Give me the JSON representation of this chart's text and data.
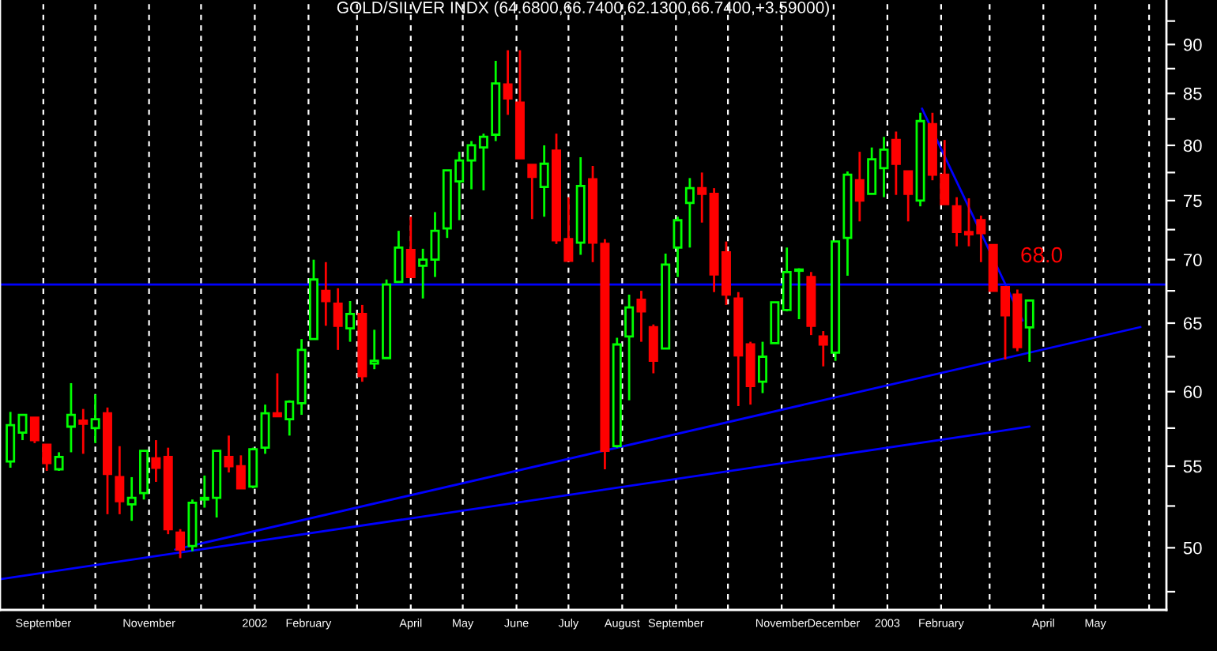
{
  "chart_data": {
    "type": "candlestick",
    "title": "GOLD/SILVER INDX (64.6800,66.7400,62.1300,66.7400,+3.59000)",
    "x": [
      "2001-08-13",
      "2001-08-20",
      "2001-08-27",
      "2001-09-03",
      "2001-09-10",
      "2001-09-17",
      "2001-09-24",
      "2001-10-01",
      "2001-10-08",
      "2001-10-15",
      "2001-10-22",
      "2001-10-29",
      "2001-11-05",
      "2001-11-12",
      "2001-11-19",
      "2001-11-26",
      "2001-12-03",
      "2001-12-10",
      "2001-12-17",
      "2001-12-24",
      "2001-12-31",
      "2002-01-07",
      "2002-01-14",
      "2002-01-21",
      "2002-01-28",
      "2002-02-04",
      "2002-02-11",
      "2002-02-18",
      "2002-02-25",
      "2002-03-04",
      "2002-03-11",
      "2002-03-18",
      "2002-03-25",
      "2002-04-01",
      "2002-04-08",
      "2002-04-15",
      "2002-04-22",
      "2002-04-29",
      "2002-05-06",
      "2002-05-13",
      "2002-05-20",
      "2002-05-27",
      "2002-06-03",
      "2002-06-10",
      "2002-06-17",
      "2002-06-24",
      "2002-07-01",
      "2002-07-08",
      "2002-07-15",
      "2002-07-22",
      "2002-07-29",
      "2002-08-05",
      "2002-08-12",
      "2002-08-19",
      "2002-08-26",
      "2002-09-02",
      "2002-09-09",
      "2002-09-16",
      "2002-09-23",
      "2002-09-30",
      "2002-10-07",
      "2002-10-14",
      "2002-10-21",
      "2002-10-28",
      "2002-11-04",
      "2002-11-11",
      "2002-11-18",
      "2002-11-25",
      "2002-12-02",
      "2002-12-09",
      "2002-12-16",
      "2002-12-23",
      "2002-12-30",
      "2003-01-06",
      "2003-01-13",
      "2003-01-20",
      "2003-01-27",
      "2003-02-03",
      "2003-02-10",
      "2003-02-17",
      "2003-02-24",
      "2003-03-03",
      "2003-03-10",
      "2003-03-17",
      "2003-03-24"
    ],
    "ohlc": [
      [
        55.3,
        58.6,
        54.9,
        57.7
      ],
      [
        57.2,
        58.4,
        56.7,
        58.4
      ],
      [
        58.2,
        58.2,
        56.5,
        56.7
      ],
      [
        56.4,
        56.4,
        54.7,
        55.2
      ],
      [
        54.8,
        55.9,
        54.7,
        55.6
      ],
      [
        57.6,
        60.6,
        55.9,
        58.4
      ],
      [
        58.0,
        58.8,
        55.8,
        57.8
      ],
      [
        57.5,
        59.8,
        56.5,
        58.1
      ],
      [
        58.5,
        58.9,
        52.0,
        54.5
      ],
      [
        54.3,
        56.3,
        52.0,
        52.8
      ],
      [
        52.6,
        54.3,
        51.6,
        53.0
      ],
      [
        53.3,
        56.0,
        52.9,
        56.0
      ],
      [
        55.5,
        56.7,
        54.0,
        54.9
      ],
      [
        55.6,
        56.2,
        50.8,
        51.1
      ],
      [
        50.9,
        51.1,
        49.4,
        49.9
      ],
      [
        50.1,
        52.9,
        49.8,
        52.7
      ],
      [
        52.9,
        54.4,
        52.4,
        53.0
      ],
      [
        53.0,
        56.0,
        51.8,
        56.0
      ],
      [
        55.6,
        57.0,
        54.6,
        55.0
      ],
      [
        55.0,
        55.7,
        53.6,
        53.6
      ],
      [
        53.7,
        56.2,
        53.6,
        56.1
      ],
      [
        56.2,
        59.1,
        55.8,
        58.5
      ],
      [
        58.5,
        61.3,
        58.3,
        58.3
      ],
      [
        58.1,
        59.4,
        57.0,
        59.3
      ],
      [
        59.2,
        63.8,
        58.4,
        63.0
      ],
      [
        63.8,
        70.0,
        63.8,
        68.4
      ],
      [
        67.5,
        69.8,
        64.8,
        66.7
      ],
      [
        66.5,
        67.7,
        63.0,
        64.8
      ],
      [
        64.6,
        66.7,
        63.6,
        65.7
      ],
      [
        65.7,
        66.4,
        60.7,
        61.1
      ],
      [
        62.0,
        64.5,
        61.6,
        62.2
      ],
      [
        62.4,
        68.4,
        62.4,
        68.0
      ],
      [
        68.2,
        72.4,
        68.2,
        71.0
      ],
      [
        70.8,
        73.6,
        68.6,
        68.6
      ],
      [
        69.5,
        70.9,
        66.9,
        70.0
      ],
      [
        70.0,
        74.0,
        68.6,
        72.4
      ],
      [
        72.6,
        77.7,
        71.8,
        77.7
      ],
      [
        76.7,
        79.4,
        73.3,
        78.6
      ],
      [
        78.6,
        80.4,
        76.0,
        80.0
      ],
      [
        79.8,
        81.1,
        75.9,
        80.8
      ],
      [
        81.0,
        88.3,
        80.4,
        86.0
      ],
      [
        85.9,
        89.4,
        82.9,
        84.5
      ],
      [
        84.1,
        89.4,
        78.8,
        78.8
      ],
      [
        78.2,
        78.2,
        73.4,
        77.1
      ],
      [
        76.2,
        80.0,
        73.6,
        78.3
      ],
      [
        79.5,
        81.1,
        71.3,
        71.6
      ],
      [
        71.7,
        75.3,
        69.9,
        69.9
      ],
      [
        71.4,
        78.9,
        70.4,
        76.3
      ],
      [
        76.9,
        78.1,
        69.8,
        71.4
      ],
      [
        71.3,
        71.7,
        54.8,
        56.0
      ],
      [
        56.3,
        63.9,
        56.2,
        63.4
      ],
      [
        64.0,
        67.2,
        59.4,
        66.2
      ],
      [
        66.8,
        67.5,
        63.6,
        65.9
      ],
      [
        64.7,
        64.9,
        61.3,
        62.2
      ],
      [
        63.1,
        70.5,
        63.1,
        69.6
      ],
      [
        71.0,
        73.6,
        68.6,
        73.3
      ],
      [
        74.8,
        77.0,
        71.0,
        76.1
      ],
      [
        76.1,
        77.5,
        73.1,
        75.6
      ],
      [
        75.6,
        76.1,
        67.4,
        68.8
      ],
      [
        70.6,
        71.5,
        66.4,
        67.2
      ],
      [
        66.9,
        67.4,
        59.0,
        62.6
      ],
      [
        63.4,
        63.6,
        59.1,
        60.4
      ],
      [
        60.7,
        63.6,
        59.9,
        62.5
      ],
      [
        63.5,
        66.6,
        63.5,
        66.6
      ],
      [
        66.0,
        71.0,
        65.9,
        69.0
      ],
      [
        69.1,
        69.3,
        65.3,
        69.2
      ],
      [
        68.6,
        69.0,
        64.1,
        64.8
      ],
      [
        64.0,
        64.4,
        61.8,
        63.4
      ],
      [
        62.8,
        71.5,
        62.2,
        71.5
      ],
      [
        71.8,
        77.6,
        68.7,
        77.3
      ],
      [
        76.8,
        79.4,
        73.2,
        75.0
      ],
      [
        75.6,
        79.8,
        75.6,
        78.7
      ],
      [
        77.9,
        80.8,
        75.3,
        79.6
      ],
      [
        80.5,
        81.3,
        75.5,
        78.3
      ],
      [
        77.6,
        77.6,
        73.2,
        75.6
      ],
      [
        75.0,
        83.1,
        74.5,
        82.3
      ],
      [
        82.0,
        83.1,
        76.8,
        77.3
      ],
      [
        77.3,
        80.5,
        74.7,
        74.7
      ],
      [
        74.5,
        75.3,
        71.1,
        72.3
      ],
      [
        72.3,
        75.2,
        71.1,
        72.1
      ],
      [
        73.3,
        73.7,
        69.8,
        72.2
      ],
      [
        71.2,
        71.2,
        67.5,
        67.5
      ],
      [
        67.8,
        67.8,
        62.3,
        65.6
      ],
      [
        67.2,
        67.6,
        62.9,
        63.2
      ],
      [
        64.68,
        66.74,
        62.13,
        66.74
      ]
    ],
    "colors": [
      "#00ff00",
      "#00ff00",
      "#ff0000",
      "#ff0000",
      "#00ff00",
      "#00ff00",
      "#ff0000",
      "#00ff00",
      "#ff0000",
      "#ff0000",
      "#00ff00",
      "#00ff00",
      "#ff0000",
      "#ff0000",
      "#ff0000",
      "#00ff00",
      "#00ff00",
      "#00ff00",
      "#ff0000",
      "#ff0000",
      "#00ff00",
      "#00ff00",
      "#ff0000",
      "#00ff00",
      "#00ff00",
      "#00ff00",
      "#ff0000",
      "#ff0000",
      "#00ff00",
      "#ff0000",
      "#00ff00",
      "#00ff00",
      "#00ff00",
      "#ff0000",
      "#00ff00",
      "#00ff00",
      "#00ff00",
      "#00ff00",
      "#00ff00",
      "#00ff00",
      "#00ff00",
      "#ff0000",
      "#ff0000",
      "#ff0000",
      "#00ff00",
      "#ff0000",
      "#ff0000",
      "#00ff00",
      "#ff0000",
      "#ff0000",
      "#00ff00",
      "#00ff00",
      "#ff0000",
      "#ff0000",
      "#00ff00",
      "#00ff00",
      "#00ff00",
      "#ff0000",
      "#ff0000",
      "#ff0000",
      "#ff0000",
      "#ff0000",
      "#00ff00",
      "#00ff00",
      "#00ff00",
      "#00ff00",
      "#ff0000",
      "#ff0000",
      "#00ff00",
      "#00ff00",
      "#ff0000",
      "#00ff00",
      "#00ff00",
      "#ff0000",
      "#ff0000",
      "#00ff00",
      "#ff0000",
      "#ff0000",
      "#ff0000",
      "#ff0000",
      "#ff0000",
      "#ff0000",
      "#ff0000",
      "#ff0000",
      "#00ff00"
    ],
    "series": [
      {
        "type": "line",
        "color": "#0000ff",
        "x": [
          "2001-08-07",
          "2003-03-24"
        ],
        "values": [
          48.2,
          57.6
        ]
      },
      {
        "type": "line",
        "color": "#0000ff",
        "x": [
          "2001-11-16",
          "2003-05-27"
        ],
        "values": [
          49.9,
          64.7
        ]
      },
      {
        "type": "line",
        "color": "#0000ff",
        "x": [
          "2003-01-21",
          "2003-03-20"
        ],
        "values": [
          83.5,
          65.2
        ]
      }
    ],
    "ref_lines": [
      {
        "axis": "y",
        "value": 68.0,
        "label": "68.0",
        "color": "#0000ff"
      }
    ],
    "log": true,
    "xlim": [
      "2001-08-07",
      "2003-06-11"
    ],
    "xticks": [
      {
        "value": "2001-09-01",
        "label": "September"
      },
      {
        "value": "2001-10-01",
        "label": null
      },
      {
        "value": "2001-11-01",
        "label": "November"
      },
      {
        "value": "2001-12-01",
        "label": null
      },
      {
        "value": "2002-01-01",
        "label": "2002"
      },
      {
        "value": "2002-02-01",
        "label": "February"
      },
      {
        "value": "2002-03-01",
        "label": null
      },
      {
        "value": "2002-04-01",
        "label": "April"
      },
      {
        "value": "2002-05-01",
        "label": "May"
      },
      {
        "value": "2002-06-01",
        "label": "June"
      },
      {
        "value": "2002-07-01",
        "label": "July"
      },
      {
        "value": "2002-08-01",
        "label": "August"
      },
      {
        "value": "2002-09-01",
        "label": "September"
      },
      {
        "value": "2002-10-01",
        "label": null
      },
      {
        "value": "2002-11-01",
        "label": "November"
      },
      {
        "value": "2002-12-01",
        "label": "December"
      },
      {
        "value": "2003-01-01",
        "label": "2003"
      },
      {
        "value": "2003-02-01",
        "label": "February"
      },
      {
        "value": "2003-03-01",
        "label": null
      },
      {
        "value": "2003-04-01",
        "label": "April"
      },
      {
        "value": "2003-05-01",
        "label": "May"
      },
      {
        "value": "2003-06-01",
        "label": null
      }
    ],
    "ylim": [
      46.5,
      94.8
    ],
    "yticks": [
      {
        "value": 47.5,
        "label": null
      },
      {
        "value": 50,
        "label": "50"
      },
      {
        "value": 52.5,
        "label": null
      },
      {
        "value": 55,
        "label": "55"
      },
      {
        "value": 57.5,
        "label": null
      },
      {
        "value": 60,
        "label": "60"
      },
      {
        "value": 62.5,
        "label": null
      },
      {
        "value": 65,
        "label": "65"
      },
      {
        "value": 67.5,
        "label": null
      },
      {
        "value": 70,
        "label": "70"
      },
      {
        "value": 72.5,
        "label": null
      },
      {
        "value": 75,
        "label": "75"
      },
      {
        "value": 77.5,
        "label": null
      },
      {
        "value": 80,
        "label": "80"
      },
      {
        "value": 82.5,
        "label": null
      },
      {
        "value": 85,
        "label": "85"
      },
      {
        "value": 87.5,
        "label": null
      },
      {
        "value": 90,
        "label": "90"
      },
      {
        "value": 92.5,
        "label": null
      }
    ],
    "grid": "x",
    "legend": false
  }
}
